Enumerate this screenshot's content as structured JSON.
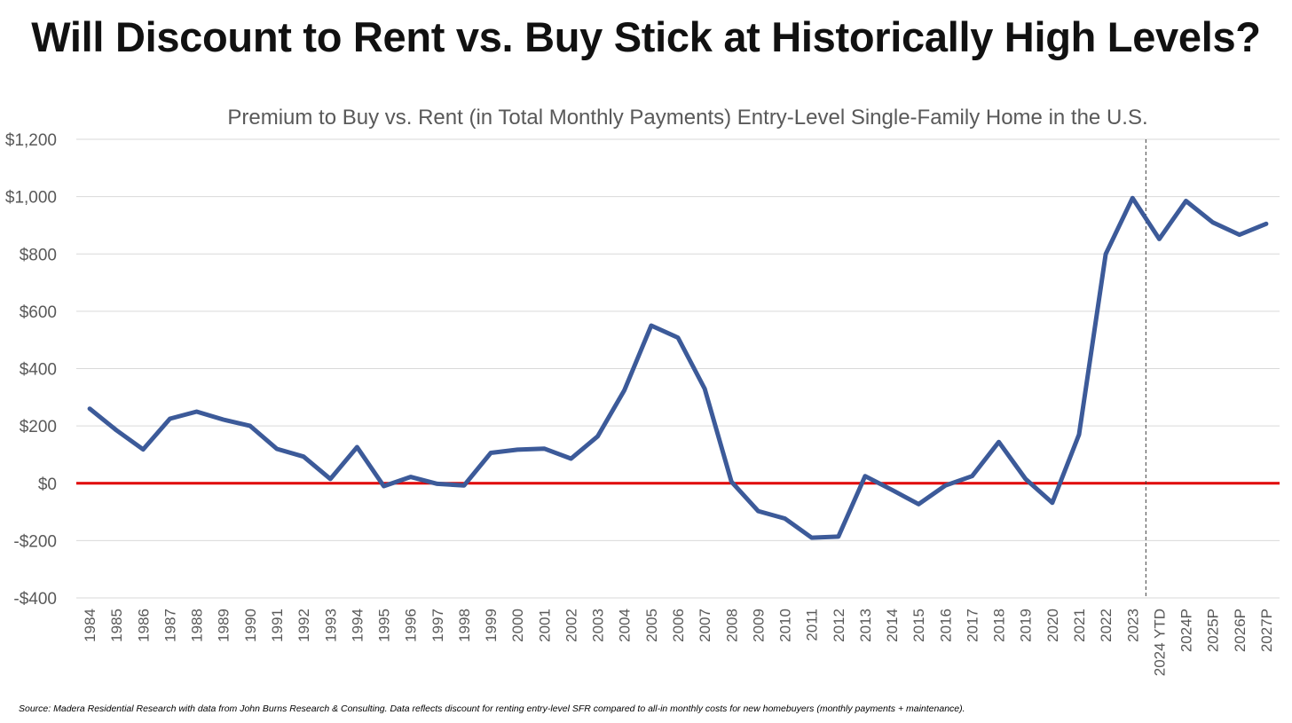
{
  "headline": "Will Discount to Rent vs. Buy Stick at Historically High Levels?",
  "source_note": "Source: Madera Residential Research with data from John Burns Research & Consulting. Data reflects discount for renting entry-level SFR compared to all-in monthly costs for new homebuyers (monthly payments + maintenance).",
  "chart_data": {
    "type": "line",
    "title": "Premium to Buy vs. Rent (in Total Monthly Payments) Entry-Level Single-Family Home in the U.S.",
    "xlabel": "",
    "ylabel": "",
    "ylim": [
      -400,
      1200
    ],
    "ytick_values": [
      -400,
      -200,
      0,
      200,
      400,
      600,
      800,
      1000,
      1200
    ],
    "ytick_labels": [
      "-$400",
      "-$200",
      "$0",
      "$200",
      "$400",
      "$600",
      "$800",
      "$1,000",
      "$1,200"
    ],
    "grid": true,
    "legend": "none",
    "reference_line": {
      "y": 0,
      "color": "#e00000"
    },
    "divider_after_category": "2023",
    "line_color": "#3c5a99",
    "categories": [
      "1984",
      "1985",
      "1986",
      "1987",
      "1988",
      "1989",
      "1990",
      "1991",
      "1992",
      "1993",
      "1994",
      "1995",
      "1996",
      "1997",
      "1998",
      "1999",
      "2000",
      "2001",
      "2002",
      "2003",
      "2004",
      "2005",
      "2006",
      "2007",
      "2008",
      "2009",
      "2010",
      "2011",
      "2012",
      "2013",
      "2014",
      "2015",
      "2016",
      "2017",
      "2018",
      "2019",
      "2020",
      "2021",
      "2022",
      "2023",
      "2024 YTD",
      "2024P",
      "2025P",
      "2026P",
      "2027P"
    ],
    "series": [
      {
        "values": [
          260,
          185,
          118,
          225,
          250,
          222,
          200,
          120,
          93,
          15,
          126,
          -10,
          22,
          -2,
          -8,
          106,
          117,
          121,
          86,
          164,
          325,
          550,
          508,
          330,
          5,
          -97,
          -123,
          -190,
          -186,
          25,
          -23,
          -73,
          -8,
          25,
          144,
          15,
          -68,
          170,
          800,
          995,
          852,
          985,
          910,
          867,
          905
        ]
      }
    ]
  }
}
